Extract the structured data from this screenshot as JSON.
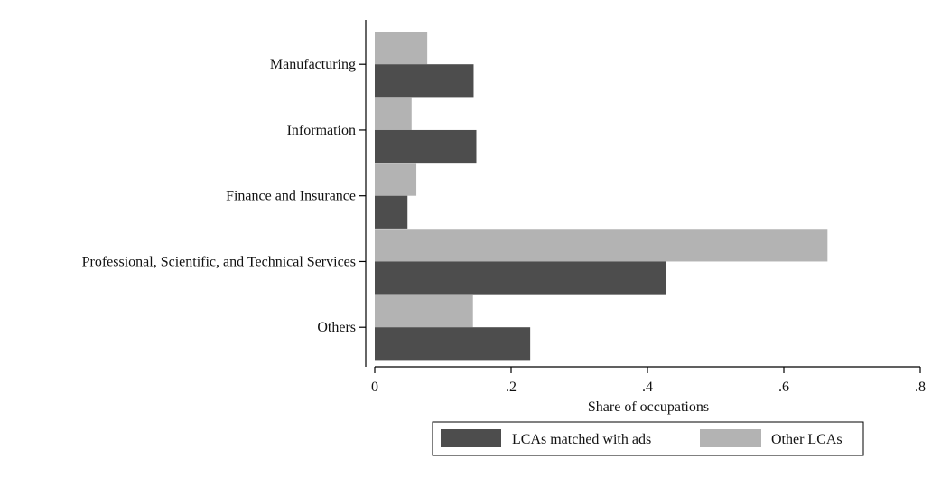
{
  "chart_data": {
    "type": "bar",
    "orientation": "horizontal",
    "title": "",
    "xlabel": "Share of occupations",
    "ylabel": "",
    "xlim": [
      0,
      0.8
    ],
    "xticks": [
      0,
      0.2,
      0.4,
      0.6,
      0.8
    ],
    "xtick_labels": [
      "0",
      ".2",
      ".4",
      ".6",
      ".8"
    ],
    "categories": [
      "Manufacturing",
      "Information",
      "Finance and Insurance",
      "Professional, Scientific, and Technical Services",
      "Others"
    ],
    "series": [
      {
        "name": "Other LCAs",
        "color": "#b3b3b3",
        "values": [
          0.077,
          0.054,
          0.061,
          0.664,
          0.144
        ]
      },
      {
        "name": "LCAs matched with ads",
        "color": "#4d4d4d",
        "values": [
          0.145,
          0.149,
          0.048,
          0.427,
          0.228
        ]
      }
    ],
    "legend": {
      "position": "bottom",
      "entries": [
        "LCAs matched with ads",
        "Other LCAs"
      ]
    }
  },
  "colors": {
    "dark": "#4d4d4d",
    "light": "#b3b3b3",
    "axis": "#000000"
  }
}
